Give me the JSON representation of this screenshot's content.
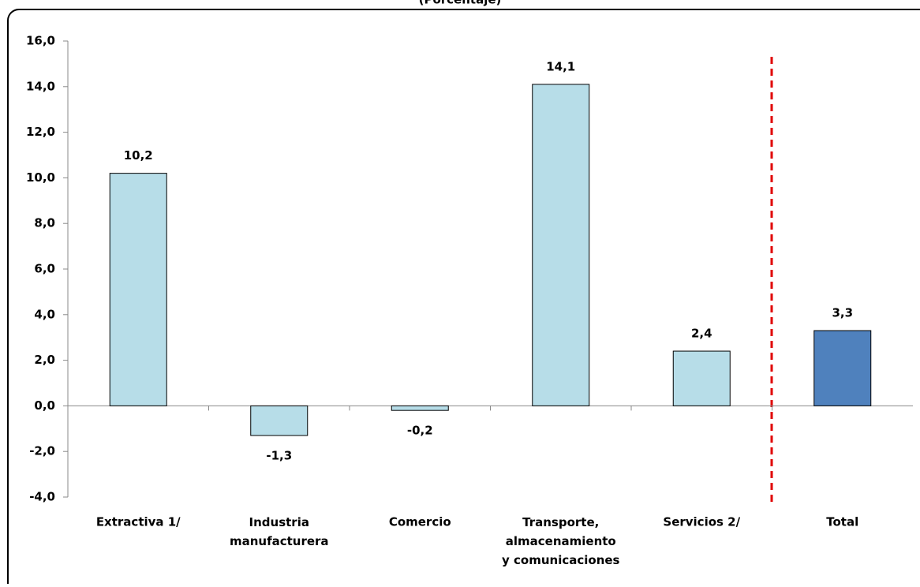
{
  "chart_data": {
    "type": "bar",
    "title": "(Porcentaje)",
    "categories": [
      "Extractiva 1/",
      "Industria\nmanufacturera",
      "Comercio",
      "Transporte,\nalmacenamiento\ny comunicaciones",
      "Servicios 2/",
      "Total"
    ],
    "values": [
      10.2,
      -1.3,
      -0.2,
      14.1,
      2.4,
      3.3
    ],
    "value_labels": [
      "10,2",
      "-1,3",
      "-0,2",
      "14,1",
      "2,4",
      "3,3"
    ],
    "colors": [
      "#b7dde8",
      "#b7dde8",
      "#b7dde8",
      "#b7dde8",
      "#b7dde8",
      "#4f81bd"
    ],
    "ylim": [
      -4,
      16
    ],
    "yticks": [
      {
        "value": -4,
        "label": "-4,0"
      },
      {
        "value": -2,
        "label": "-2,0"
      },
      {
        "value": 0,
        "label": "0,0"
      },
      {
        "value": 2,
        "label": "2,0"
      },
      {
        "value": 4,
        "label": "4,0"
      },
      {
        "value": 6,
        "label": "6,0"
      },
      {
        "value": 8,
        "label": "8,0"
      },
      {
        "value": 10,
        "label": "10,0"
      },
      {
        "value": 12,
        "label": "12,0"
      },
      {
        "value": 14,
        "label": "14,0"
      },
      {
        "value": 16,
        "label": "16,0"
      }
    ],
    "grid": false
  }
}
